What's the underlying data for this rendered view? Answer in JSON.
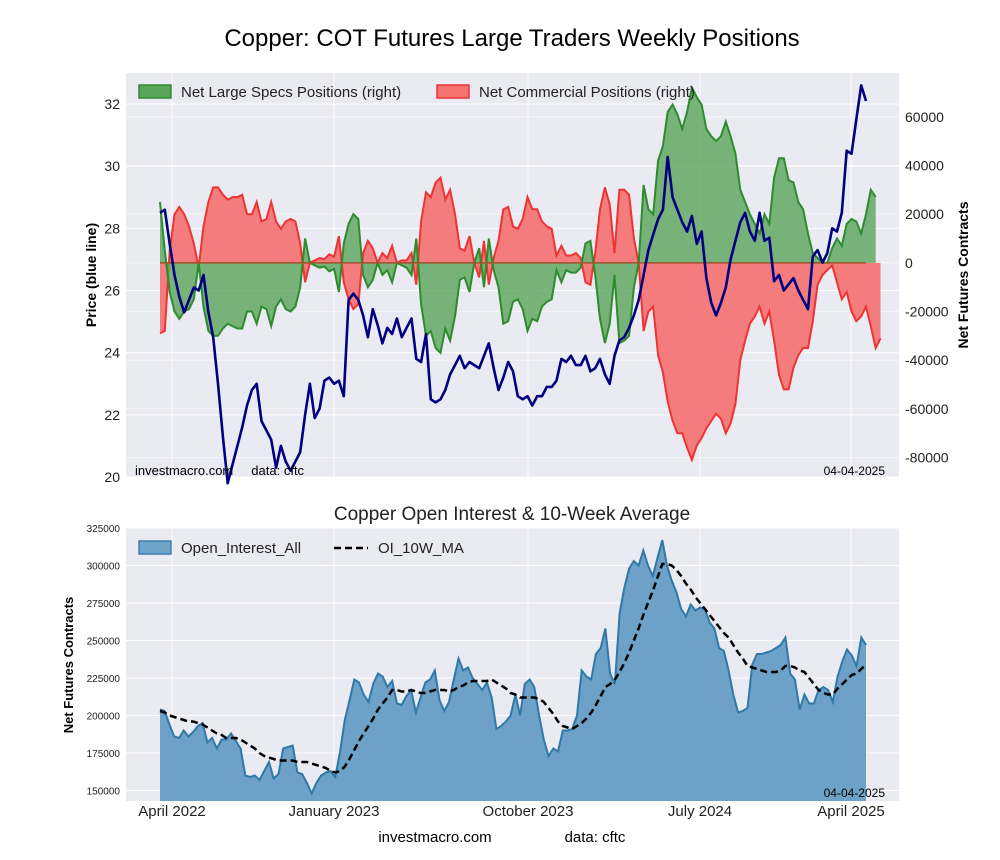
{
  "title": "Copper: COT Futures Large Traders Weekly Positions",
  "footer": {
    "site": "investmacro.com",
    "source": "data: cftc"
  },
  "chart_data": [
    {
      "type": "line",
      "title": "",
      "ylabel_left": "Price (blue line)",
      "ylabel_right": "Net Futures Contracts",
      "ylim_left": [
        20,
        33
      ],
      "ylim_right": [
        -88000,
        78000
      ],
      "yticks_left": [
        "20",
        "22",
        "24",
        "26",
        "28",
        "30",
        "32"
      ],
      "yticks_right": [
        "-80000",
        "-60000",
        "-40000",
        "-20000",
        "0",
        "20000",
        "40000",
        "60000"
      ],
      "legend": [
        "Net Large Specs Positions (right)",
        "Net Commercial Positions (right)"
      ],
      "legend_position": "top-left",
      "annotation_left": "investmacro.com     data: cftc",
      "annotation_right": "04-04-2025",
      "price_color": "#000080",
      "specs_color": "#2e8b2e",
      "commercial_color": "#ee3333",
      "x_start": "2022-03-29",
      "x_end": "2025-04-01",
      "series": [
        {
          "name": "Price (blue line)",
          "values": [
            28.5,
            28.6,
            27.5,
            26.5,
            25.8,
            25.3,
            25.7,
            26.1,
            26.0,
            26.5,
            25.3,
            24.5,
            23.0,
            21.3,
            19.8,
            20.4,
            21.0,
            21.6,
            22.3,
            22.8,
            23.0,
            21.8,
            21.5,
            21.2,
            20.3,
            21.0,
            20.5,
            20.2,
            20.5,
            20.8,
            22.0,
            23.0,
            21.9,
            22.2,
            23.1,
            23.2,
            23.0,
            23.1,
            22.6,
            25.7,
            25.9,
            25.7,
            25.2,
            24.5,
            25.4,
            24.9,
            24.3,
            24.8,
            24.6,
            25.1,
            24.5,
            24.8,
            25.1,
            23.8,
            23.7,
            24.6,
            22.5,
            22.4,
            22.5,
            22.8,
            23.3,
            23.6,
            23.9,
            23.5,
            23.7,
            23.6,
            23.5,
            23.9,
            24.3,
            23.5,
            22.8,
            23.2,
            23.7,
            23.4,
            22.6,
            22.5,
            22.6,
            22.3,
            22.6,
            22.6,
            22.9,
            22.9,
            23.1,
            23.8,
            23.7,
            23.9,
            23.6,
            23.6,
            23.9,
            23.4,
            23.5,
            23.8,
            23.3,
            23.0,
            23.9,
            24.4,
            24.5,
            24.8,
            25.2,
            25.7,
            26.5,
            27.3,
            27.8,
            28.3,
            28.6,
            30.3,
            29.0,
            28.6,
            28.2,
            27.9,
            28.4,
            27.5,
            27.9,
            26.4,
            25.6,
            25.2,
            25.6,
            26.1,
            27.0,
            27.6,
            28.2,
            28.5,
            27.9,
            27.6,
            28.5,
            27.6,
            27.7,
            26.3,
            26.5,
            26.0,
            26.2,
            26.4,
            26.0,
            25.7,
            25.4,
            27.1,
            27.3,
            26.9,
            27.2,
            28.0,
            27.9,
            28.5,
            30.5,
            30.4,
            31.5,
            32.6,
            32.1
          ]
        },
        {
          "name": "Net Large Specs Positions (right)",
          "values": [
            25000,
            5000,
            -12000,
            -20000,
            -23000,
            -20000,
            -19000,
            -15000,
            0,
            -18000,
            -28000,
            -30000,
            -30000,
            -27000,
            -25000,
            -26000,
            -27000,
            -27000,
            -20000,
            -20000,
            -25000,
            -18000,
            -19000,
            -26000,
            -18000,
            -15000,
            -19000,
            -20000,
            -18000,
            -10000,
            10000,
            0,
            -1000,
            -2000,
            -1500,
            -3500,
            -2500,
            -12000,
            8000,
            16000,
            20000,
            18000,
            -5000,
            -10000,
            -7000,
            0,
            -5000,
            -3000,
            -8000,
            0,
            -1000,
            -2000,
            -5000,
            10000,
            -17000,
            -30000,
            -28000,
            -35000,
            -37000,
            -27000,
            -32000,
            -22000,
            -7000,
            -6000,
            -12000,
            0,
            6000,
            -10000,
            10000,
            -3000,
            -10000,
            -25000,
            -24000,
            -16000,
            -15000,
            -19000,
            -28000,
            -23000,
            -24000,
            -18000,
            -16000,
            -15000,
            -3000,
            -8000,
            -3000,
            -4000,
            -4000,
            -2000,
            8000,
            9000,
            -5000,
            -23000,
            -33000,
            -25000,
            -5000,
            -33000,
            -32000,
            -30000,
            -10000,
            0,
            32000,
            22000,
            20000,
            42000,
            48000,
            62000,
            65000,
            61000,
            55000,
            62000,
            72000,
            68000,
            65000,
            55000,
            52000,
            50000,
            52000,
            58000,
            52000,
            45000,
            30000,
            25000,
            20000,
            16000,
            12000,
            20000,
            16000,
            35000,
            43000,
            43000,
            34000,
            33000,
            25000,
            22000,
            12000,
            4000,
            2000,
            0,
            0,
            6000,
            10000,
            7000,
            16000,
            18000,
            17000,
            12000,
            20000,
            30000,
            27000
          ]
        },
        {
          "name": "Net Commercial Positions (right)",
          "values": [
            -29000,
            -28000,
            5000,
            20000,
            23000,
            20000,
            15000,
            8000,
            -2000,
            15000,
            25000,
            31000,
            31000,
            28000,
            26000,
            27000,
            27000,
            28000,
            20000,
            20000,
            25000,
            17000,
            18000,
            25000,
            17000,
            14000,
            17000,
            18000,
            17000,
            8000,
            -8000,
            0,
            1000,
            2000,
            1500,
            3500,
            2500,
            11000,
            -8000,
            -15000,
            -19000,
            -17000,
            4000,
            9000,
            6000,
            0,
            4000,
            2000,
            7000,
            0,
            1000,
            1000,
            4000,
            -9000,
            17000,
            29000,
            27000,
            33000,
            35000,
            26000,
            30000,
            20000,
            6000,
            5000,
            11000,
            0,
            -6000,
            9000,
            -9000,
            2000,
            9000,
            22000,
            23000,
            15000,
            14000,
            18000,
            27000,
            22000,
            22000,
            17000,
            15000,
            14000,
            3000,
            7000,
            3000,
            3000,
            4000,
            2000,
            -8000,
            -9000,
            4000,
            22000,
            31000,
            24000,
            4000,
            30000,
            30000,
            28000,
            10000,
            0,
            -28000,
            -20000,
            -18000,
            -38000,
            -45000,
            -57000,
            -65000,
            -70000,
            -70000,
            -76000,
            -81000,
            -75000,
            -72000,
            -68000,
            -65000,
            -62000,
            -64000,
            -70000,
            -66000,
            -58000,
            -40000,
            -32000,
            -25000,
            -22000,
            -18000,
            -25000,
            -20000,
            -32000,
            -46000,
            -52000,
            -52000,
            -43000,
            -38000,
            -35000,
            -35000,
            -24000,
            -9000,
            -5000,
            -3000,
            -1000,
            -8000,
            -15000,
            -12000,
            -20000,
            -24000,
            -22000,
            -18000,
            -26000,
            -35000,
            -31000
          ]
        }
      ]
    },
    {
      "type": "area",
      "title": "Copper Open Interest & 10-Week Average",
      "ylabel": "Net Futures Contracts",
      "ylim": [
        143000,
        325000
      ],
      "yticks": [
        "150000",
        "175000",
        "200000",
        "225000",
        "250000",
        "275000",
        "300000",
        "325000"
      ],
      "x_tick_labels": [
        "April 2022",
        "January 2023",
        "October 2023",
        "July 2024",
        "April 2025"
      ],
      "legend": [
        "Open_Interest_All",
        "OI_10W_MA"
      ],
      "legend_position": "top-left",
      "annotation_right": "04-04-2025",
      "area_color": "#4f8fb8",
      "ma_color": "#000000",
      "series": [
        {
          "name": "Open_Interest_All",
          "values": [
            204000,
            203000,
            194000,
            186000,
            185000,
            190000,
            186000,
            189000,
            193000,
            195000,
            182000,
            185000,
            178000,
            184000,
            184000,
            188000,
            183000,
            178000,
            160000,
            159000,
            160000,
            157000,
            163000,
            169000,
            158000,
            161000,
            178000,
            179000,
            180000,
            162000,
            161000,
            155000,
            148000,
            155000,
            160000,
            162000,
            163000,
            159000,
            176000,
            197000,
            210000,
            224000,
            222000,
            214000,
            209000,
            221000,
            228000,
            226000,
            219000,
            223000,
            208000,
            207000,
            213000,
            217000,
            202000,
            212000,
            222000,
            224000,
            230000,
            210000,
            203000,
            209000,
            224000,
            238000,
            230000,
            232000,
            225000,
            221000,
            217000,
            222000,
            212000,
            191000,
            193000,
            196000,
            200000,
            214000,
            200000,
            221000,
            224000,
            219000,
            200000,
            184000,
            173000,
            178000,
            176000,
            190000,
            190000,
            191000,
            200000,
            230000,
            226000,
            224000,
            241000,
            245000,
            258000,
            228000,
            221000,
            268000,
            285000,
            298000,
            303000,
            300000,
            310000,
            300000,
            293000,
            305000,
            317000,
            300000,
            290000,
            282000,
            271000,
            266000,
            274000,
            270000,
            272000,
            271000,
            262000,
            258000,
            245000,
            243000,
            230000,
            214000,
            202000,
            203000,
            205000,
            234000,
            241000,
            241000,
            242000,
            243000,
            245000,
            247000,
            252000,
            228000,
            224000,
            204000,
            214000,
            208000,
            208000,
            217000,
            219000,
            217000,
            209000,
            226000,
            236000,
            244000,
            240000,
            233000,
            252000,
            247000
          ]
        },
        {
          "name": "OI_10W_MA",
          "values": [
            203000,
            202000,
            200000,
            199000,
            198000,
            197000,
            196000,
            196000,
            195000,
            194000,
            192000,
            190000,
            188000,
            187000,
            185000,
            185000,
            185000,
            184000,
            182000,
            180000,
            178000,
            175000,
            173000,
            172000,
            171000,
            170000,
            170000,
            170000,
            170000,
            169000,
            169000,
            169000,
            168000,
            167000,
            166000,
            165000,
            163000,
            162000,
            163000,
            166000,
            171000,
            177000,
            183000,
            188000,
            193000,
            198000,
            204000,
            208000,
            212000,
            217000,
            217000,
            216000,
            216000,
            217000,
            216000,
            215000,
            215000,
            216000,
            217000,
            217000,
            217000,
            216000,
            217000,
            219000,
            220000,
            222000,
            223000,
            223000,
            223000,
            223000,
            224000,
            222000,
            220000,
            218000,
            215000,
            214000,
            212000,
            212000,
            212000,
            212000,
            211000,
            209000,
            205000,
            201000,
            196000,
            193000,
            192000,
            191000,
            193000,
            195000,
            198000,
            202000,
            207000,
            213000,
            219000,
            221000,
            224000,
            229000,
            235000,
            242000,
            250000,
            258000,
            267000,
            275000,
            283000,
            292000,
            301000,
            301000,
            300000,
            297000,
            293000,
            288000,
            284000,
            279000,
            275000,
            271000,
            267000,
            263000,
            259000,
            255000,
            252000,
            247000,
            242000,
            238000,
            233000,
            232000,
            231000,
            230000,
            229000,
            229000,
            229000,
            230000,
            233000,
            233000,
            232000,
            230000,
            229000,
            225000,
            221000,
            217000,
            215000,
            214000,
            214000,
            218000,
            221000,
            224000,
            227000,
            228000,
            231000,
            234000
          ]
        }
      ]
    }
  ]
}
